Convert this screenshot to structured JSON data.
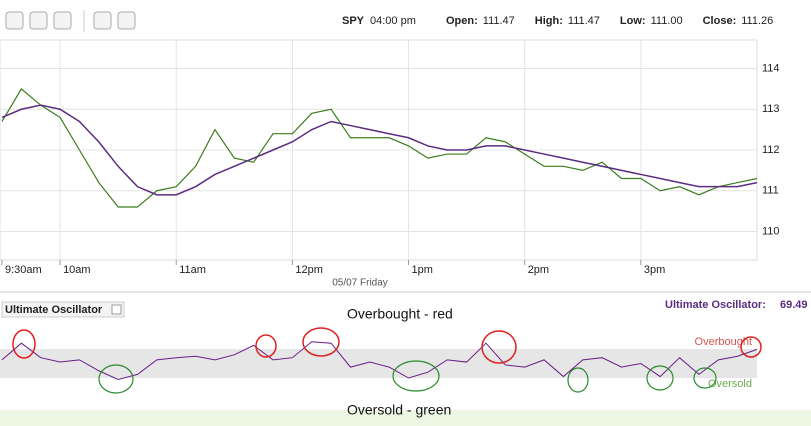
{
  "header": {
    "symbol": "SPY",
    "time": "04:00 pm",
    "quote": [
      {
        "label": "Open:",
        "value": "111.47"
      },
      {
        "label": "High:",
        "value": "111.47"
      },
      {
        "label": "Low:",
        "value": "111.00"
      },
      {
        "label": "Close:",
        "value": "111.26"
      }
    ]
  },
  "chart_data": [
    {
      "type": "line",
      "xlabel": "05/07 Friday",
      "xlim": [
        0,
        390
      ],
      "xticks": [
        {
          "value": 0,
          "label": "9:30am"
        },
        {
          "value": 30,
          "label": "10am"
        },
        {
          "value": 90,
          "label": "11am"
        },
        {
          "value": 150,
          "label": "12pm"
        },
        {
          "value": 210,
          "label": "1pm"
        },
        {
          "value": 270,
          "label": "2pm"
        },
        {
          "value": 330,
          "label": "3pm"
        }
      ],
      "ylim": [
        109.3,
        114.7
      ],
      "yticks": [
        110,
        111,
        112,
        113,
        114
      ],
      "grid": true,
      "series": [
        {
          "color": "#3a7d1e",
          "values": [
            112.7,
            113.5,
            113.1,
            112.8,
            112.0,
            111.2,
            110.6,
            110.6,
            111.0,
            111.1,
            111.6,
            112.5,
            111.8,
            111.7,
            112.4,
            112.4,
            112.9,
            113.0,
            112.3,
            112.3,
            112.3,
            112.1,
            111.8,
            111.9,
            111.9,
            112.3,
            112.2,
            111.9,
            111.6,
            111.6,
            111.5,
            111.7,
            111.3,
            111.3,
            111.0,
            111.1,
            110.9,
            111.1,
            111.2,
            111.3
          ]
        },
        {
          "color": "#5b2d82",
          "values": [
            112.8,
            113.0,
            113.1,
            113.0,
            112.7,
            112.2,
            111.6,
            111.1,
            110.9,
            110.9,
            111.1,
            111.4,
            111.6,
            111.8,
            112.0,
            112.2,
            112.5,
            112.7,
            112.6,
            112.5,
            112.4,
            112.3,
            112.1,
            112.0,
            112.0,
            112.1,
            112.1,
            112.0,
            111.9,
            111.8,
            111.7,
            111.6,
            111.5,
            111.4,
            111.3,
            111.2,
            111.1,
            111.1,
            111.1,
            111.2
          ]
        }
      ]
    },
    {
      "type": "line",
      "title": "Ultimate Oscillator",
      "readout_label": "Ultimate Oscillator:",
      "ylim": [
        10,
        90
      ],
      "levels": [
        {
          "name": "Overbought",
          "value": 70,
          "color": "#d9534f"
        },
        {
          "name": "Oversold",
          "value": 30,
          "color": "#6aa84f"
        }
      ],
      "series": [
        {
          "color": "#6a1b8a",
          "values": [
            55,
            78,
            58,
            52,
            55,
            40,
            28,
            35,
            55,
            58,
            60,
            55,
            62,
            75,
            55,
            58,
            80,
            78,
            45,
            52,
            45,
            30,
            38,
            55,
            52,
            78,
            48,
            45,
            55,
            32,
            55,
            58,
            45,
            50,
            32,
            58,
            35,
            55,
            60,
            69.49
          ]
        }
      ],
      "annotations": [
        "Overbought - red",
        "Oversold - green"
      ]
    }
  ]
}
